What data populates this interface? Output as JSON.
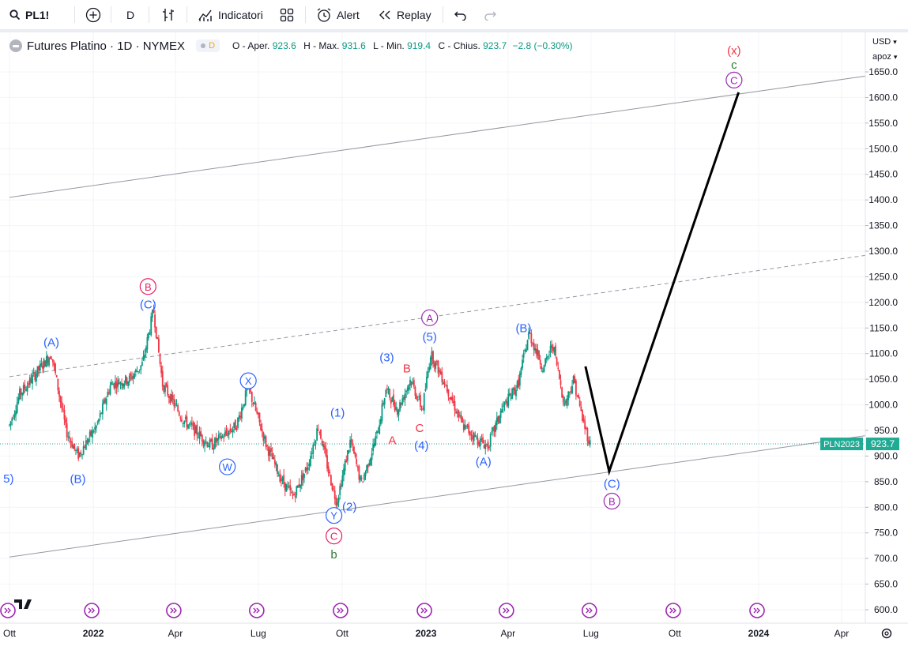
{
  "toolbar": {
    "symbol": "PL1!",
    "interval": "D",
    "indicators_label": "Indicatori",
    "alert_label": "Alert",
    "replay_label": "Replay"
  },
  "legend": {
    "title": "Futures Platino · 1D · NYMEX",
    "badge": "D",
    "open_label": "O - Aper.",
    "open": "923.6",
    "high_label": "H - Max.",
    "high": "931.6",
    "low_label": "L - Min.",
    "low": "919.4",
    "close_label": "C - Chius.",
    "close": "923.7",
    "change": "−2.8 (−0.30%)"
  },
  "scale": {
    "currency": "USD",
    "mode": "apoz"
  },
  "colors": {
    "up": "#089981",
    "down": "#f23645",
    "wave_blue": "#2962ff",
    "wave_pink": "#e91e63",
    "wave_purple": "#9c27b0",
    "wave_red": "#f23645",
    "wave_green": "#2e7d32",
    "price_tag": "#22ab94"
  },
  "chart_data": {
    "type": "candlestick",
    "title": "Futures Platino · 1D · NYMEX",
    "ylim": [
      570,
      1680
    ],
    "y_ticks": [
      1650,
      1600,
      1550,
      1500,
      1450,
      1400,
      1350,
      1300,
      1250,
      1200,
      1150,
      1100,
      1050,
      1000,
      950,
      900,
      850,
      800,
      750,
      700,
      650,
      600
    ],
    "x_labels": [
      {
        "label": "Ott",
        "date": "2021-10-01"
      },
      {
        "label": "2022",
        "date": "2022-01-01"
      },
      {
        "label": "Apr",
        "date": "2022-04-01"
      },
      {
        "label": "Lug",
        "date": "2022-07-01"
      },
      {
        "label": "Ott",
        "date": "2022-10-01"
      },
      {
        "label": "2023",
        "date": "2023-01-01"
      },
      {
        "label": "Apr",
        "date": "2023-04-01"
      },
      {
        "label": "Lug",
        "date": "2023-07-01"
      },
      {
        "label": "Ott",
        "date": "2023-10-01"
      },
      {
        "label": "2024",
        "date": "2024-01-01"
      },
      {
        "label": "Apr",
        "date": "2024-04-01"
      }
    ],
    "last_price": {
      "label": "PLN2023",
      "value": 923.7
    },
    "price_path": [
      {
        "date": "2021-10-01",
        "price": 960
      },
      {
        "date": "2021-10-12",
        "price": 1020
      },
      {
        "date": "2021-11-16",
        "price": 1100
      },
      {
        "date": "2021-12-02",
        "price": 950
      },
      {
        "date": "2021-12-15",
        "price": 900
      },
      {
        "date": "2022-01-05",
        "price": 960
      },
      {
        "date": "2022-01-20",
        "price": 1040
      },
      {
        "date": "2022-02-10",
        "price": 1050
      },
      {
        "date": "2022-02-24",
        "price": 1080
      },
      {
        "date": "2022-03-08",
        "price": 1185
      },
      {
        "date": "2022-03-18",
        "price": 1040
      },
      {
        "date": "2022-04-10",
        "price": 970
      },
      {
        "date": "2022-05-10",
        "price": 920
      },
      {
        "date": "2022-06-07",
        "price": 960
      },
      {
        "date": "2022-06-20",
        "price": 1035
      },
      {
        "date": "2022-07-10",
        "price": 920
      },
      {
        "date": "2022-07-26",
        "price": 855
      },
      {
        "date": "2022-08-08",
        "price": 820
      },
      {
        "date": "2022-08-24",
        "price": 880
      },
      {
        "date": "2022-09-05",
        "price": 960
      },
      {
        "date": "2022-09-16",
        "price": 870
      },
      {
        "date": "2022-09-25",
        "price": 810
      },
      {
        "date": "2022-10-10",
        "price": 930
      },
      {
        "date": "2022-10-22",
        "price": 845
      },
      {
        "date": "2022-11-08",
        "price": 940
      },
      {
        "date": "2022-11-18",
        "price": 1030
      },
      {
        "date": "2022-12-01",
        "price": 990
      },
      {
        "date": "2022-12-15",
        "price": 1050
      },
      {
        "date": "2022-12-28",
        "price": 990
      },
      {
        "date": "2023-01-06",
        "price": 1100
      },
      {
        "date": "2023-01-20",
        "price": 1050
      },
      {
        "date": "2023-02-10",
        "price": 960
      },
      {
        "date": "2023-02-28",
        "price": 930
      },
      {
        "date": "2023-03-10",
        "price": 920
      },
      {
        "date": "2023-03-25",
        "price": 990
      },
      {
        "date": "2023-04-12",
        "price": 1040
      },
      {
        "date": "2023-04-24",
        "price": 1140
      },
      {
        "date": "2023-05-10",
        "price": 1070
      },
      {
        "date": "2023-05-20",
        "price": 1120
      },
      {
        "date": "2023-06-02",
        "price": 1000
      },
      {
        "date": "2023-06-12",
        "price": 1050
      },
      {
        "date": "2023-06-22",
        "price": 970
      },
      {
        "date": "2023-06-30",
        "price": 923.7
      }
    ],
    "projection": [
      {
        "date": "2023-06-25",
        "price": 1075
      },
      {
        "date": "2023-07-21",
        "price": 870
      },
      {
        "date": "2023-12-10",
        "price": 1610
      }
    ],
    "channel_lines": [
      {
        "style": "solid",
        "points": [
          {
            "date": "2021-10-01",
            "price": 1405
          },
          {
            "date": "2024-05-10",
            "price": 1645
          }
        ]
      },
      {
        "style": "dashed",
        "points": [
          {
            "date": "2021-10-01",
            "price": 1055
          },
          {
            "date": "2024-05-10",
            "price": 1295
          }
        ]
      },
      {
        "style": "solid",
        "points": [
          {
            "date": "2021-10-01",
            "price": 703
          },
          {
            "date": "2024-05-10",
            "price": 943
          }
        ]
      }
    ],
    "wave_labels": [
      {
        "text": "(A)",
        "date": "2021-11-16",
        "price": 1122,
        "color": "blue",
        "circled": false
      },
      {
        "text": "(B)",
        "date": "2021-12-15",
        "price": 855,
        "color": "blue",
        "circled": false
      },
      {
        "text": "B",
        "date": "2022-03-02",
        "price": 1231,
        "color": "pink",
        "circled": true
      },
      {
        "text": "(C)",
        "date": "2022-03-02",
        "price": 1196,
        "color": "blue",
        "circled": false
      },
      {
        "text": "W",
        "date": "2022-05-28",
        "price": 879,
        "color": "blue",
        "circled": true
      },
      {
        "text": "X",
        "date": "2022-06-20",
        "price": 1047,
        "color": "blue",
        "circled": true
      },
      {
        "text": "(1)",
        "date": "2022-09-26",
        "price": 985,
        "color": "blue",
        "circled": false
      },
      {
        "text": "(2)",
        "date": "2022-10-09",
        "price": 801,
        "color": "blue",
        "circled": false
      },
      {
        "text": "Y",
        "date": "2022-09-22",
        "price": 784,
        "color": "blue",
        "circled": true
      },
      {
        "text": "C",
        "date": "2022-09-22",
        "price": 744,
        "color": "pink",
        "circled": true
      },
      {
        "text": "b",
        "date": "2022-09-22",
        "price": 708,
        "color": "green",
        "circled": false
      },
      {
        "text": "(3)",
        "date": "2022-11-19",
        "price": 1093,
        "color": "blue",
        "circled": false
      },
      {
        "text": "A",
        "date": "2022-11-25",
        "price": 931,
        "color": "red",
        "circled": false
      },
      {
        "text": "B",
        "date": "2022-12-11",
        "price": 1071,
        "color": "red",
        "circled": false
      },
      {
        "text": "C",
        "date": "2022-12-25",
        "price": 955,
        "color": "red",
        "circled": false
      },
      {
        "text": "(4)",
        "date": "2022-12-27",
        "price": 921,
        "color": "blue",
        "circled": false
      },
      {
        "text": "A",
        "date": "2023-01-05",
        "price": 1170,
        "color": "purple",
        "circled": true
      },
      {
        "text": "(5)",
        "date": "2023-01-05",
        "price": 1133,
        "color": "blue",
        "circled": false
      },
      {
        "text": "(A)",
        "date": "2023-03-05",
        "price": 889,
        "color": "blue",
        "circled": false
      },
      {
        "text": "(B)",
        "date": "2023-04-18",
        "price": 1150,
        "color": "blue",
        "circled": false
      },
      {
        "text": "(C)",
        "date": "2023-07-24",
        "price": 846,
        "color": "blue",
        "circled": false
      },
      {
        "text": "B",
        "date": "2023-07-24",
        "price": 812,
        "color": "purple",
        "circled": true
      },
      {
        "text": "(x)",
        "date": "2023-12-05",
        "price": 1692,
        "color": "red",
        "circled": false
      },
      {
        "text": "c",
        "date": "2023-12-05",
        "price": 1664,
        "color": "green",
        "circled": false
      },
      {
        "text": "C",
        "date": "2023-12-05",
        "price": 1634,
        "color": "purple",
        "circled": true
      },
      {
        "text": "5)",
        "date": "2021-09-30",
        "price": 856,
        "color": "blue",
        "circled": false
      }
    ]
  }
}
